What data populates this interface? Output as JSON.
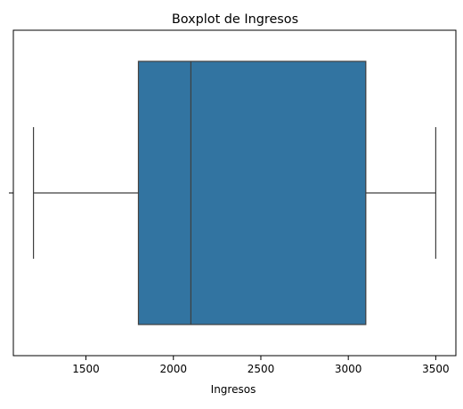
{
  "chart_data": {
    "type": "boxplot",
    "title": "Boxplot de Ingresos",
    "xlabel": "Ingresos",
    "ylabel": "",
    "orientation": "horizontal",
    "xlim": [
      1085,
      3615
    ],
    "x_ticks": [
      1500,
      2000,
      2500,
      3000,
      3500
    ],
    "x_tick_labels": [
      "1500",
      "2000",
      "2500",
      "3000",
      "3500"
    ],
    "grid": false,
    "legend": "none",
    "series": [
      {
        "whisker_low": 1200,
        "q1": 1800,
        "median": 2100,
        "q3": 3100,
        "whisker_high": 3500,
        "color": "#3274a1"
      }
    ],
    "colors": {
      "box_fill": "#3274a1",
      "line": "#3f3f3f",
      "axes": "#000000"
    }
  }
}
